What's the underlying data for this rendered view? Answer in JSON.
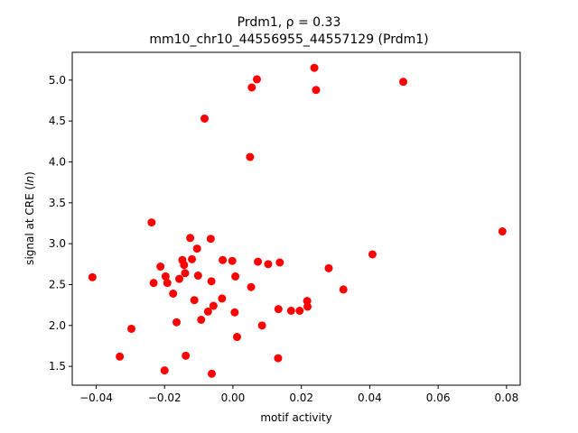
{
  "chart_data": {
    "type": "scatter",
    "title_line1": "Prdm1, ρ = 0.33",
    "title_line2": "mm10_chr10_44556955_44557129 (Prdm1)",
    "xlabel": "motif activity",
    "ylabel": "signal at CRE (ln)",
    "xlim": [
      -0.047,
      0.084
    ],
    "ylim": [
      1.27,
      5.34
    ],
    "xticks": [
      -0.04,
      -0.02,
      0.0,
      0.02,
      0.04,
      0.06,
      0.08
    ],
    "xtick_labels": [
      "−0.04",
      "−0.02",
      "0.00",
      "0.02",
      "0.04",
      "0.06",
      "0.08"
    ],
    "yticks": [
      1.5,
      2.0,
      2.5,
      3.0,
      3.5,
      4.0,
      4.5,
      5.0
    ],
    "ytick_labels": [
      "1.5",
      "2.0",
      "2.5",
      "3.0",
      "3.5",
      "4.0",
      "4.5",
      "5.0"
    ],
    "point_color": "#ff0000",
    "grid": false,
    "points": [
      {
        "x": -0.0411,
        "y": 2.59
      },
      {
        "x": -0.0331,
        "y": 1.62
      },
      {
        "x": -0.0297,
        "y": 1.96
      },
      {
        "x": -0.0238,
        "y": 3.26
      },
      {
        "x": -0.0232,
        "y": 2.52
      },
      {
        "x": -0.0212,
        "y": 2.72
      },
      {
        "x": -0.02,
        "y": 1.45
      },
      {
        "x": -0.0197,
        "y": 2.6
      },
      {
        "x": -0.0192,
        "y": 2.52
      },
      {
        "x": -0.0175,
        "y": 2.39
      },
      {
        "x": -0.0165,
        "y": 2.04
      },
      {
        "x": -0.0157,
        "y": 2.57
      },
      {
        "x": -0.0148,
        "y": 2.8
      },
      {
        "x": -0.0143,
        "y": 2.74
      },
      {
        "x": -0.014,
        "y": 2.64
      },
      {
        "x": -0.0138,
        "y": 1.63
      },
      {
        "x": -0.0125,
        "y": 3.07
      },
      {
        "x": -0.012,
        "y": 2.81
      },
      {
        "x": -0.0113,
        "y": 2.31
      },
      {
        "x": -0.0105,
        "y": 2.94
      },
      {
        "x": -0.0102,
        "y": 2.61
      },
      {
        "x": -0.0093,
        "y": 2.07
      },
      {
        "x": -0.0083,
        "y": 4.53
      },
      {
        "x": -0.0073,
        "y": 2.17
      },
      {
        "x": -0.0065,
        "y": 3.06
      },
      {
        "x": -0.0063,
        "y": 2.54
      },
      {
        "x": -0.0062,
        "y": 1.41
      },
      {
        "x": -0.0057,
        "y": 2.24
      },
      {
        "x": -0.0032,
        "y": 2.33
      },
      {
        "x": -0.003,
        "y": 2.8
      },
      {
        "x": -0.0002,
        "y": 2.79
      },
      {
        "x": 0.0005,
        "y": 2.16
      },
      {
        "x": 0.0007,
        "y": 2.6
      },
      {
        "x": 0.0012,
        "y": 1.86
      },
      {
        "x": 0.005,
        "y": 4.06
      },
      {
        "x": 0.0053,
        "y": 2.47
      },
      {
        "x": 0.0055,
        "y": 4.91
      },
      {
        "x": 0.007,
        "y": 5.01
      },
      {
        "x": 0.0073,
        "y": 2.78
      },
      {
        "x": 0.0085,
        "y": 2.0
      },
      {
        "x": 0.0103,
        "y": 2.75
      },
      {
        "x": 0.0132,
        "y": 1.6
      },
      {
        "x": 0.0133,
        "y": 2.2
      },
      {
        "x": 0.0137,
        "y": 2.77
      },
      {
        "x": 0.017,
        "y": 2.18
      },
      {
        "x": 0.0195,
        "y": 2.18
      },
      {
        "x": 0.0217,
        "y": 2.3
      },
      {
        "x": 0.0218,
        "y": 2.23
      },
      {
        "x": 0.0238,
        "y": 5.15
      },
      {
        "x": 0.0243,
        "y": 4.88
      },
      {
        "x": 0.028,
        "y": 2.7
      },
      {
        "x": 0.0323,
        "y": 2.44
      },
      {
        "x": 0.0408,
        "y": 2.87
      },
      {
        "x": 0.0498,
        "y": 4.98
      },
      {
        "x": 0.0788,
        "y": 3.15
      }
    ]
  }
}
